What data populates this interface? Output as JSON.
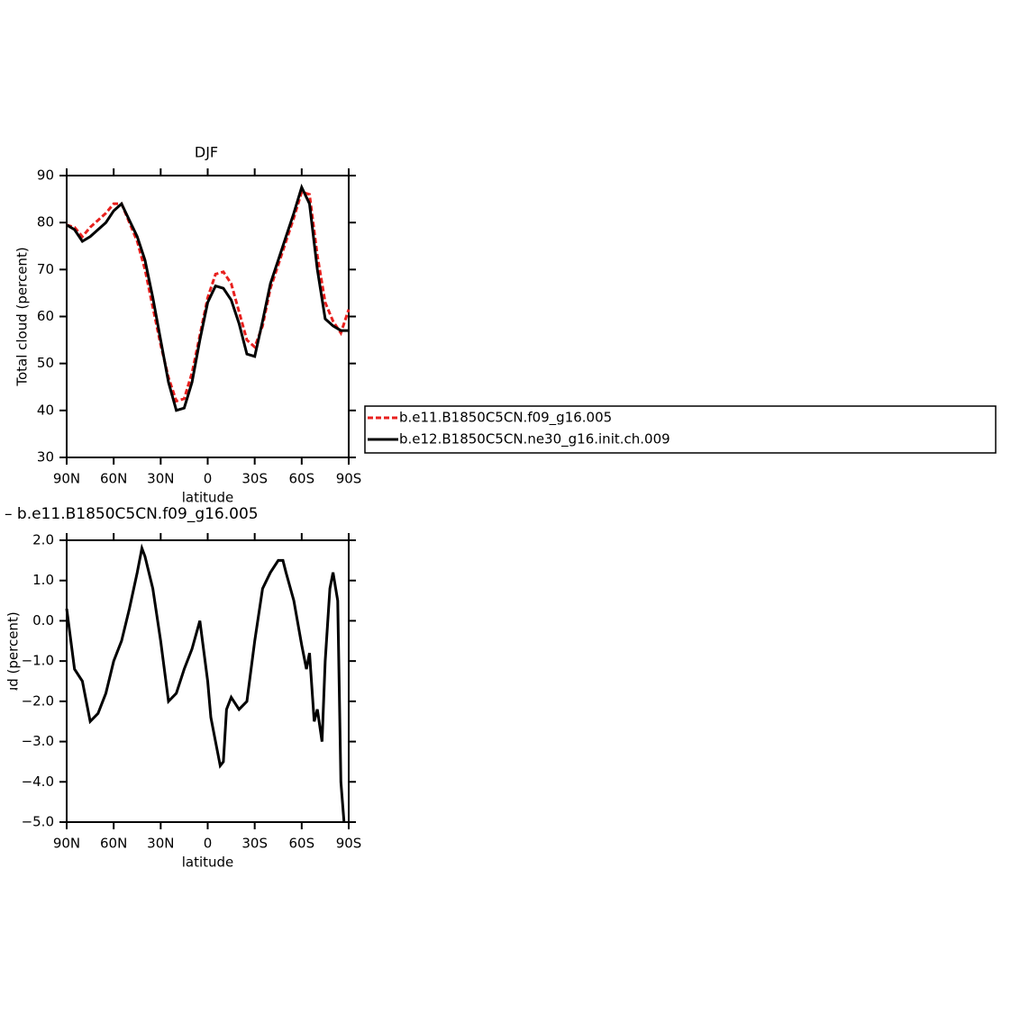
{
  "chart_data": [
    {
      "type": "line",
      "title": "DJF",
      "xlabel": "latitude",
      "ylabel": "Total cloud (percent)",
      "x": [
        90,
        85,
        80,
        75,
        70,
        65,
        60,
        55,
        50,
        45,
        40,
        35,
        30,
        25,
        20,
        15,
        10,
        5,
        0,
        -5,
        -10,
        -15,
        -20,
        -25,
        -30,
        -35,
        -40,
        -45,
        -50,
        -55,
        -60,
        -65,
        -70,
        -75,
        -80,
        -85,
        -90
      ],
      "series": [
        {
          "name": "b.e11.B1850C5CN.f09_g16.005",
          "color": "#e8201e",
          "dashed": true,
          "values": [
            79.5,
            79,
            77,
            79,
            80.5,
            82,
            84,
            84,
            80,
            76,
            70,
            62,
            54,
            47,
            42,
            42.5,
            48,
            56,
            64,
            69,
            69.5,
            67,
            61,
            55,
            53.5,
            58,
            66,
            71,
            76,
            81,
            86.5,
            86,
            73,
            63,
            59,
            56.5,
            61.5
          ]
        },
        {
          "name": "b.e12.B1850C5CN.ne30_g16.init.ch.009",
          "color": "#000000",
          "dashed": false,
          "values": [
            79.5,
            78.5,
            76,
            77,
            78.5,
            80,
            82.5,
            84,
            80.5,
            77,
            72,
            64,
            55,
            46,
            40,
            40.5,
            46,
            55,
            63,
            66.5,
            66,
            63.5,
            58.5,
            52,
            51.5,
            59,
            67,
            72,
            77,
            82,
            87.5,
            84,
            70,
            59.5,
            58,
            57,
            57
          ]
        }
      ],
      "xlim": [
        90,
        -90
      ],
      "xticks": [
        {
          "value": 90,
          "label": "90N"
        },
        {
          "value": 60,
          "label": "60N"
        },
        {
          "value": 30,
          "label": "30N"
        },
        0,
        {
          "value": -30,
          "label": "30S"
        },
        {
          "value": -60,
          "label": "60S"
        },
        {
          "value": -90,
          "label": "90S"
        }
      ],
      "ylim": [
        30,
        90
      ],
      "yticks": [
        30,
        40,
        50,
        60,
        70,
        80,
        90
      ],
      "legend": "right"
    },
    {
      "type": "line",
      "title": "–  b.e11.B1850C5CN.f09_g16.005",
      "xlabel": "latitude",
      "ylabel": "Total cloud (percent)",
      "x": [
        90,
        85,
        80,
        75,
        70,
        65,
        60,
        55,
        50,
        45,
        42,
        40,
        35,
        30,
        25,
        20,
        15,
        10,
        5,
        0,
        -2,
        -5,
        -8,
        -10,
        -12,
        -15,
        -20,
        -25,
        -30,
        -35,
        -40,
        -45,
        -48,
        -50,
        -55,
        -60,
        -63,
        -65,
        -68,
        -70,
        -73,
        -75,
        -78,
        -80,
        -83,
        -85,
        -87
      ],
      "series": [
        {
          "color": "#000000",
          "dashed": false,
          "values": [
            0.3,
            -1.2,
            -1.5,
            -2.5,
            -2.3,
            -1.8,
            -1.0,
            -0.5,
            0.3,
            1.2,
            1.8,
            1.6,
            0.8,
            -0.5,
            -2.0,
            -1.8,
            -1.2,
            -0.7,
            0.0,
            -1.5,
            -2.4,
            -3.0,
            -3.6,
            -3.5,
            -2.2,
            -1.9,
            -2.2,
            -2.0,
            -0.5,
            0.8,
            1.2,
            1.5,
            1.5,
            1.2,
            0.5,
            -0.6,
            -1.2,
            -0.8,
            -2.5,
            -2.2,
            -3.0,
            -1.0,
            0.8,
            1.2,
            0.5,
            -4.0,
            -5.0
          ]
        }
      ],
      "xlim": [
        90,
        -90
      ],
      "xticks": [
        {
          "value": 90,
          "label": "90N"
        },
        {
          "value": 60,
          "label": "60N"
        },
        {
          "value": 30,
          "label": "30N"
        },
        0,
        {
          "value": -30,
          "label": "30S"
        },
        {
          "value": -60,
          "label": "60S"
        },
        {
          "value": -90,
          "label": "90S"
        }
      ],
      "ylim": [
        -5,
        2
      ],
      "yticks": [
        {
          "value": -5,
          "label": "−5.0"
        },
        {
          "value": -4,
          "label": "−4.0"
        },
        {
          "value": -3,
          "label": "−3.0"
        },
        {
          "value": -2,
          "label": "−2.0"
        },
        {
          "value": -1,
          "label": "−1.0"
        },
        {
          "value": 0,
          "label": "0.0"
        },
        {
          "value": 1,
          "label": "1.0"
        },
        {
          "value": 2,
          "label": "2.0"
        }
      ]
    }
  ]
}
